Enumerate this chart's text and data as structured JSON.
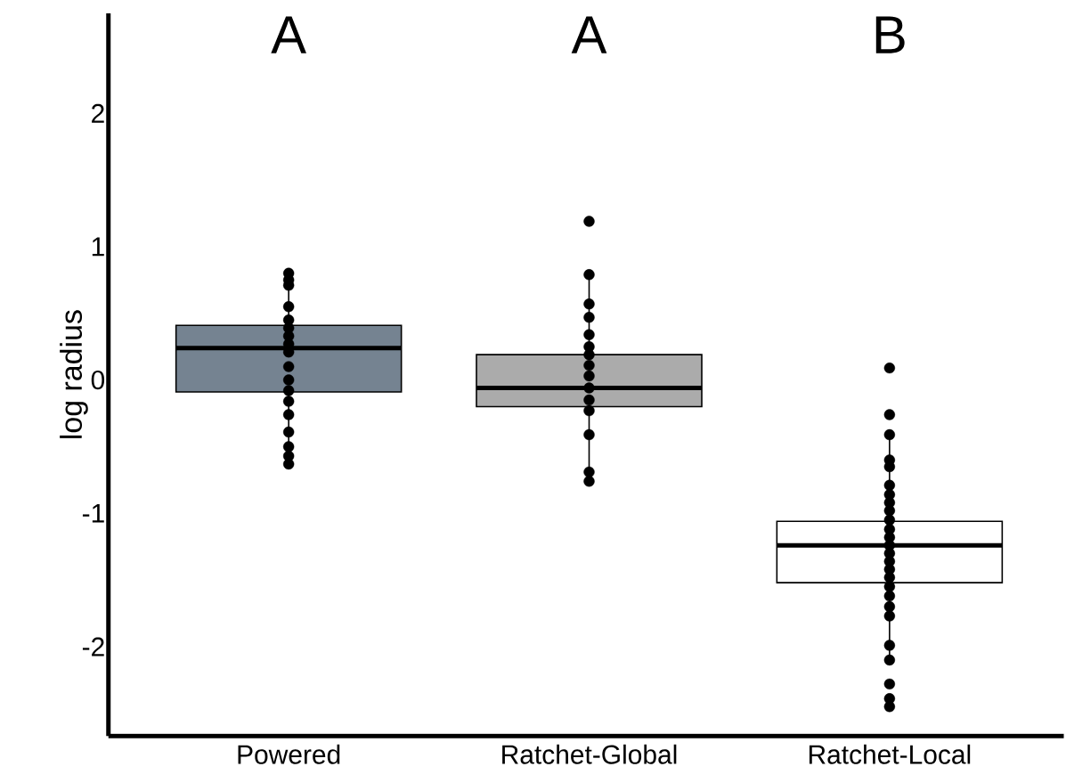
{
  "chart_data": {
    "type": "box",
    "ylabel": "log radius",
    "categories": [
      "Powered",
      "Ratchet-Global",
      "Ratchet-Local"
    ],
    "colors": [
      "#758391",
      "#ababab",
      "#ffffff"
    ],
    "boxes": [
      {
        "low": -0.63,
        "q1": -0.09,
        "median": 0.24,
        "q3": 0.41,
        "high": 0.8
      },
      {
        "low": -0.76,
        "q1": -0.2,
        "median": -0.06,
        "q3": 0.19,
        "high": 0.79
      },
      {
        "low": -2.1,
        "q1": -1.52,
        "median": -1.24,
        "q3": -1.06,
        "high": -0.41
      }
    ],
    "series": [
      {
        "type": "scatter",
        "color": "#000000",
        "x": [
          "Powered",
          "Powered",
          "Powered",
          "Powered",
          "Powered",
          "Powered",
          "Powered",
          "Powered",
          "Powered",
          "Powered",
          "Powered",
          "Powered",
          "Powered",
          "Powered",
          "Powered",
          "Powered",
          "Powered",
          "Powered"
        ],
        "values": [
          0.8,
          0.75,
          0.71,
          0.55,
          0.45,
          0.39,
          0.33,
          0.27,
          0.21,
          0.1,
          0.0,
          -0.08,
          -0.16,
          -0.26,
          -0.39,
          -0.5,
          -0.57,
          -0.63
        ]
      },
      {
        "type": "scatter",
        "color": "#000000",
        "x": [
          "Ratchet-Global",
          "Ratchet-Global",
          "Ratchet-Global",
          "Ratchet-Global",
          "Ratchet-Global",
          "Ratchet-Global",
          "Ratchet-Global",
          "Ratchet-Global",
          "Ratchet-Global",
          "Ratchet-Global",
          "Ratchet-Global",
          "Ratchet-Global",
          "Ratchet-Global",
          "Ratchet-Global",
          "Ratchet-Global"
        ],
        "values": [
          1.19,
          0.79,
          0.57,
          0.47,
          0.34,
          0.25,
          0.19,
          0.11,
          0.03,
          -0.06,
          -0.15,
          -0.23,
          -0.41,
          -0.69,
          -0.76
        ]
      },
      {
        "type": "scatter",
        "color": "#000000",
        "x": [
          "Ratchet-Local",
          "Ratchet-Local",
          "Ratchet-Local",
          "Ratchet-Local",
          "Ratchet-Local",
          "Ratchet-Local",
          "Ratchet-Local",
          "Ratchet-Local",
          "Ratchet-Local",
          "Ratchet-Local",
          "Ratchet-Local",
          "Ratchet-Local",
          "Ratchet-Local",
          "Ratchet-Local",
          "Ratchet-Local",
          "Ratchet-Local",
          "Ratchet-Local",
          "Ratchet-Local",
          "Ratchet-Local",
          "Ratchet-Local",
          "Ratchet-Local",
          "Ratchet-Local",
          "Ratchet-Local",
          "Ratchet-Local",
          "Ratchet-Local",
          "Ratchet-Local"
        ],
        "values": [
          0.09,
          -0.26,
          -0.41,
          -0.6,
          -0.65,
          -0.79,
          -0.86,
          -0.92,
          -0.98,
          -1.05,
          -1.12,
          -1.18,
          -1.24,
          -1.3,
          -1.36,
          -1.42,
          -1.48,
          -1.55,
          -1.62,
          -1.7,
          -1.77,
          -1.99,
          -2.1,
          -2.28,
          -2.39,
          -2.45
        ]
      }
    ],
    "ylim": [
      -2.67,
      2.75
    ],
    "yticks": [
      -2,
      -1,
      0,
      1,
      2
    ],
    "annotations": [
      "A",
      "A",
      "B"
    ],
    "marker": "circle",
    "grid": false
  }
}
